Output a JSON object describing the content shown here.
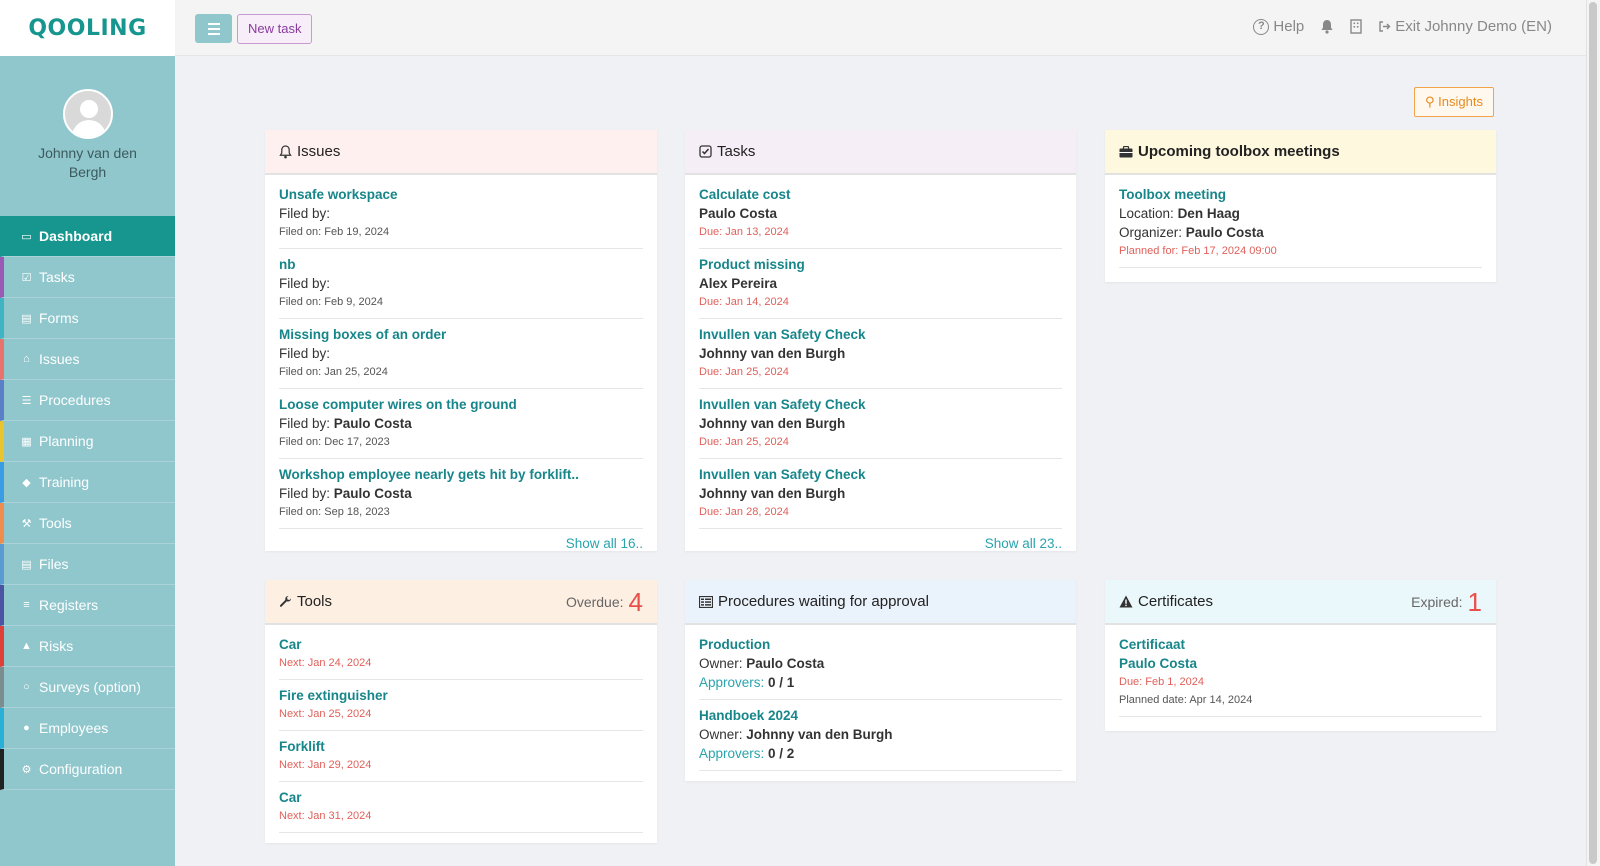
{
  "header": {
    "logo": "QOOLING",
    "new_task_label": "New task",
    "help_label": "Help",
    "exit_label": "Exit Johnny Demo (EN)"
  },
  "sidebar": {
    "user_name": "Johnny van den Bergh",
    "items": [
      {
        "label": "Dashboard",
        "icon": "monitor-icon",
        "accent": "#17968f",
        "active": true
      },
      {
        "label": "Tasks",
        "icon": "check-square-icon",
        "accent": "#9b59b6"
      },
      {
        "label": "Forms",
        "icon": "file-icon",
        "accent": "#3fb5c4"
      },
      {
        "label": "Issues",
        "icon": "bell-icon",
        "accent": "#e8736c"
      },
      {
        "label": "Procedures",
        "icon": "procedures-icon",
        "accent": "#5b7fc7"
      },
      {
        "label": "Planning",
        "icon": "calendar-icon",
        "accent": "#e8c530"
      },
      {
        "label": "Training",
        "icon": "graduation-cap-icon",
        "accent": "#3a9ce3"
      },
      {
        "label": "Tools",
        "icon": "wrench-icon",
        "accent": "#f08d4c"
      },
      {
        "label": "Files",
        "icon": "file-icon",
        "accent": "#5b9bd5"
      },
      {
        "label": "Registers",
        "icon": "list-icon",
        "accent": "#4a54a3"
      },
      {
        "label": "Risks",
        "icon": "warning-icon",
        "accent": "#e0403a"
      },
      {
        "label": "Surveys (option)",
        "icon": "comment-icon",
        "accent": "#7d8c8e"
      },
      {
        "label": "Employees",
        "icon": "users-icon",
        "accent": "#2ab0d6"
      },
      {
        "label": "Configuration",
        "icon": "gear-icon",
        "accent": "#222222"
      }
    ]
  },
  "insights_label": "Insights",
  "issues": {
    "title": "Issues",
    "filed_by_label": "Filed by:",
    "items": [
      {
        "title": "Unsafe workspace",
        "filed_by": "",
        "filed_on": "Filed on: Feb 19, 2024"
      },
      {
        "title": "nb",
        "filed_by": "",
        "filed_on": "Filed on: Feb 9, 2024"
      },
      {
        "title": "Missing boxes of an order",
        "filed_by": "",
        "filed_on": "Filed on: Jan 25, 2024"
      },
      {
        "title": "Loose computer wires on the ground",
        "filed_by": "Paulo Costa",
        "filed_on": "Filed on: Dec 17, 2023"
      },
      {
        "title": "Workshop employee nearly gets hit by forklift..",
        "filed_by": "Paulo Costa",
        "filed_on": "Filed on: Sep 18, 2023"
      }
    ],
    "show_all": "Show all 16.."
  },
  "tasks": {
    "title": "Tasks",
    "items": [
      {
        "title": "Calculate cost",
        "person": "Paulo Costa",
        "due": "Due: Jan 13, 2024"
      },
      {
        "title": "Product missing",
        "person": "Alex Pereira",
        "due": "Due: Jan 14, 2024"
      },
      {
        "title": "Invullen van Safety Check",
        "person": "Johnny van den Burgh",
        "due": "Due: Jan 25, 2024"
      },
      {
        "title": "Invullen van Safety Check",
        "person": "Johnny van den Burgh",
        "due": "Due: Jan 25, 2024"
      },
      {
        "title": "Invullen van Safety Check",
        "person": "Johnny van den Burgh",
        "due": "Due: Jan 28, 2024"
      }
    ],
    "show_all": "Show all 23.."
  },
  "toolbox": {
    "title": "Upcoming toolbox meetings",
    "items": [
      {
        "title": "Toolbox meeting",
        "location_label": "Location:",
        "location": "Den Haag",
        "organizer_label": "Organizer:",
        "organizer": "Paulo Costa",
        "planned": "Planned for: Feb 17, 2024 09:00"
      }
    ]
  },
  "tools": {
    "title": "Tools",
    "overdue_label": "Overdue:",
    "overdue_count": "4",
    "items": [
      {
        "title": "Car",
        "next": "Next: Jan 24, 2024"
      },
      {
        "title": "Fire extinguisher",
        "next": "Next: Jan 25, 2024"
      },
      {
        "title": "Forklift",
        "next": "Next: Jan 29, 2024"
      },
      {
        "title": "Car",
        "next": "Next: Jan 31, 2024"
      }
    ]
  },
  "procedures": {
    "title": "Procedures waiting for approval",
    "owner_label": "Owner:",
    "approvers_label": "Approvers:",
    "items": [
      {
        "title": "Production",
        "owner": "Paulo Costa",
        "approvers": "0 / 1"
      },
      {
        "title": "Handboek 2024",
        "owner": "Johnny van den Burgh",
        "approvers": "0 / 2"
      }
    ]
  },
  "certificates": {
    "title": "Certificates",
    "expired_label": "Expired:",
    "expired_count": "1",
    "items": [
      {
        "title": "Certificaat",
        "person": "Paulo Costa",
        "due": "Due: Feb 1, 2024",
        "planned": "Planned date: Apr 14, 2024"
      }
    ]
  }
}
